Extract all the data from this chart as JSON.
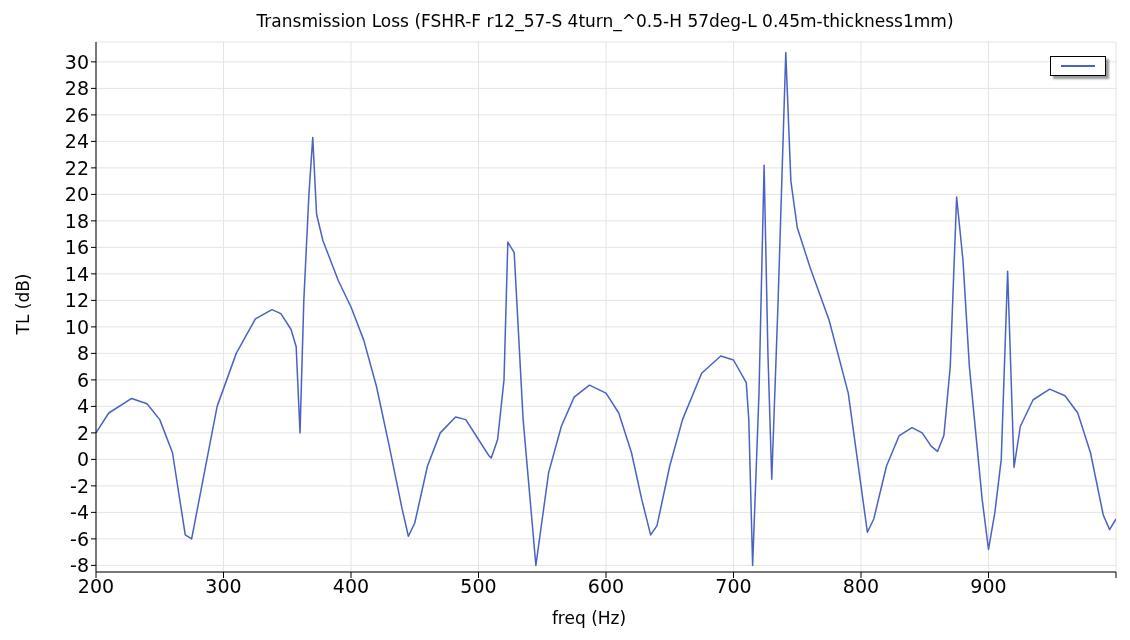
{
  "chart_data": {
    "type": "line",
    "title": "Transmission Loss (FSHR-F r12_57-S 4turn_^0.5-H 57deg-L 0.45m-thickness1mm)",
    "xlabel": "freq (Hz)",
    "ylabel": "TL (dB)",
    "x": [
      200,
      210,
      228,
      240,
      250,
      260,
      270,
      275,
      285,
      295,
      310,
      325,
      338,
      345,
      353,
      357,
      360,
      363,
      367,
      370,
      373,
      378,
      390,
      400,
      410,
      420,
      430,
      440,
      445,
      450,
      460,
      470,
      482,
      490,
      500,
      508,
      510,
      515,
      520,
      523,
      528,
      535,
      545,
      555,
      565,
      575,
      587,
      600,
      610,
      620,
      628,
      635,
      640,
      650,
      660,
      675,
      690,
      700,
      710,
      712,
      715,
      720,
      724,
      727,
      730,
      735,
      741,
      745,
      750,
      760,
      775,
      790,
      800,
      805,
      810,
      820,
      830,
      840,
      848,
      855,
      860,
      865,
      870,
      875,
      880,
      885,
      895,
      900,
      905,
      910,
      915,
      920,
      925,
      935,
      948,
      960,
      970,
      980,
      990,
      995,
      1000
    ],
    "series": [
      {
        "color": "#4a62c4",
        "values": [
          2,
          3.5,
          4.6,
          4.2,
          3,
          0.5,
          -5.7,
          -6,
          -1,
          4,
          8,
          10.6,
          11.3,
          11,
          9.8,
          8.5,
          2,
          12,
          20,
          24.3,
          18.5,
          16.5,
          13.5,
          11.5,
          9,
          5.5,
          1,
          -3.7,
          -5.8,
          -4.8,
          -0.5,
          2,
          3.2,
          3,
          1.5,
          0.3,
          0.1,
          1.5,
          6,
          16.4,
          15.6,
          3,
          -8,
          -1,
          2.5,
          4.7,
          5.6,
          5,
          3.5,
          0.5,
          -3,
          -5.7,
          -5,
          -0.5,
          3,
          6.5,
          7.8,
          7.5,
          5.8,
          3,
          -8,
          5,
          22.2,
          8,
          -1.5,
          12,
          30.7,
          21,
          17.5,
          14.5,
          10.5,
          5,
          -2,
          -5.5,
          -4.5,
          -0.5,
          1.8,
          2.4,
          2,
          1,
          0.6,
          1.8,
          7,
          19.8,
          15,
          7,
          -3,
          -6.8,
          -4,
          0,
          14.2,
          -0.6,
          2.5,
          4.5,
          5.3,
          4.8,
          3.5,
          0.5,
          -4.2,
          -5.3,
          -4.5
        ]
      }
    ],
    "xlim": [
      200,
      1000
    ],
    "xticks": [
      200,
      300,
      400,
      500,
      600,
      700,
      800,
      900,
      {
        "value": 1000,
        "label": null
      }
    ],
    "ylim": [
      -8.5,
      31.5
    ],
    "yticks": [
      -8,
      -6,
      -4,
      -2,
      0,
      2,
      4,
      6,
      8,
      10,
      12,
      14,
      16,
      18,
      20,
      22,
      24,
      26,
      28,
      30
    ],
    "grid": true,
    "marker": "none",
    "line_style": "solid"
  }
}
